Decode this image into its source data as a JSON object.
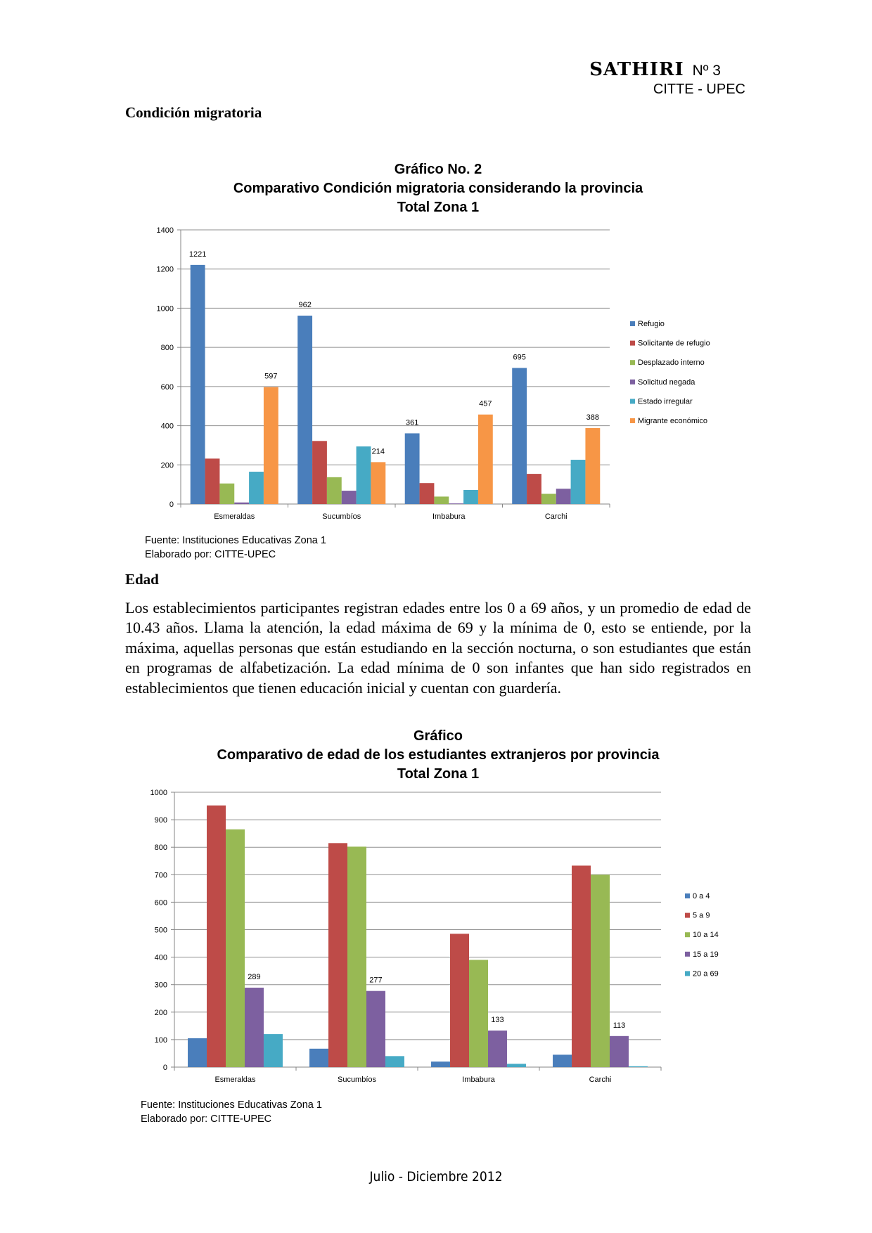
{
  "header": {
    "title": "SATHIRI",
    "issue": "Nº 3",
    "org": "CITTE - UPEC"
  },
  "section1": {
    "title": "Condición migratoria"
  },
  "section2": {
    "title": "Edad",
    "paragraph": "Los establecimientos participantes registran edades entre los 0 a 69 años, y un promedio de edad de 10.43 años.  Llama la atención, la edad máxima de 69 y la mínima de 0, esto se entiende, por la máxima, aquellas personas que están estudiando en la sección nocturna, o son estudiantes que están en programas de alfabetización. La edad mínima de 0 son infantes que han sido registrados en establecimientos que tienen educación inicial y cuentan con guardería."
  },
  "chart1_text": {
    "title_lines": [
      "Gráfico No. 2",
      "Comparativo Condición migratoria considerando la provincia",
      "Total Zona 1"
    ],
    "source": "Fuente: Instituciones Educativas Zona 1",
    "author": "Elaborado por: CITTE-UPEC"
  },
  "chart2_text": {
    "title_lines": [
      "Gráfico",
      "Comparativo de edad de los estudiantes extranjeros por provincia",
      "Total Zona 1"
    ],
    "source": "Fuente: Instituciones Educativas Zona 1",
    "author": "Elaborado por: CITTE-UPEC"
  },
  "footer": {
    "text": "Julio - Diciembre 2012"
  },
  "chart_data": [
    {
      "type": "bar",
      "title": "Gráfico No. 2 Comparativo Condición migratoria considerando la provincia Total Zona 1",
      "categories": [
        "Esmeraldas",
        "Sucumbíos",
        "Imbabura",
        "Carchi"
      ],
      "ylim": [
        0,
        1400
      ],
      "yticks": [
        0,
        200,
        400,
        600,
        800,
        1000,
        1200,
        1400
      ],
      "grid": true,
      "legend_position": "right",
      "series": [
        {
          "name": "Refugio",
          "color": "#4a7ebb",
          "values": [
            1221,
            962,
            361,
            695
          ],
          "labels": [
            true,
            true,
            true,
            true
          ]
        },
        {
          "name": "Solicitante de refugio",
          "color": "#be4b48",
          "values": [
            232,
            322,
            107,
            154
          ],
          "labels": [
            false,
            false,
            false,
            false
          ]
        },
        {
          "name": "Desplazado interno",
          "color": "#98b954",
          "values": [
            105,
            137,
            38,
            52
          ],
          "labels": [
            false,
            false,
            false,
            false
          ]
        },
        {
          "name": "Solicitud negada",
          "color": "#7d60a0",
          "values": [
            8,
            68,
            3,
            78
          ],
          "labels": [
            false,
            false,
            false,
            false
          ]
        },
        {
          "name": "Estado irregular",
          "color": "#46aac5",
          "values": [
            165,
            294,
            72,
            226
          ],
          "labels": [
            false,
            false,
            false,
            false
          ]
        },
        {
          "name": "Migrante económico",
          "color": "#f79646",
          "values": [
            597,
            214,
            457,
            388
          ],
          "labels": [
            true,
            true,
            true,
            true
          ]
        }
      ]
    },
    {
      "type": "bar",
      "title": "Gráfico Comparativo de edad de los estudiantes extranjeros por provincia Total Zona 1",
      "categories": [
        "Esmeraldas",
        "Sucumbíos",
        "Imbabura",
        "Carchi"
      ],
      "ylim": [
        0,
        1000
      ],
      "yticks": [
        0,
        100,
        200,
        300,
        400,
        500,
        600,
        700,
        800,
        900,
        1000
      ],
      "grid": true,
      "legend_position": "right",
      "series": [
        {
          "name": "0 a 4",
          "color": "#4a7ebb",
          "values": [
            105,
            67,
            20,
            45
          ],
          "labels": [
            false,
            false,
            false,
            false
          ]
        },
        {
          "name": "5 a 9",
          "color": "#be4b48",
          "values": [
            952,
            815,
            485,
            733
          ],
          "labels": [
            false,
            false,
            false,
            false
          ]
        },
        {
          "name": "10 a 14",
          "color": "#98b954",
          "values": [
            865,
            802,
            390,
            700
          ],
          "labels": [
            false,
            false,
            false,
            false
          ]
        },
        {
          "name": "15 a 19",
          "color": "#7d60a0",
          "values": [
            289,
            277,
            133,
            113
          ],
          "labels": [
            true,
            true,
            true,
            true
          ]
        },
        {
          "name": "20 a 69",
          "color": "#46aac5",
          "values": [
            120,
            40,
            12,
            3
          ],
          "labels": [
            false,
            false,
            false,
            false
          ]
        }
      ]
    }
  ]
}
